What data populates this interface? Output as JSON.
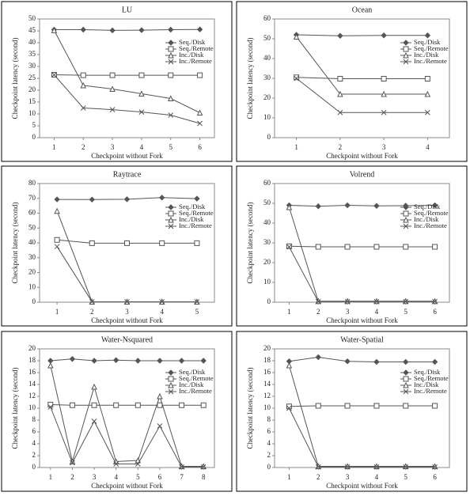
{
  "chart_data": [
    {
      "type": "line",
      "title": "LU",
      "x_label": "Checkpoint without Fork",
      "y_label": "Checkpoint latency (second)",
      "x": [
        1,
        2,
        3,
        4,
        5,
        6
      ],
      "xlim": [
        0.5,
        6.5
      ],
      "xticks": [
        1,
        2,
        3,
        4,
        5,
        6
      ],
      "ylim": [
        0,
        50
      ],
      "yticks": [
        0,
        5,
        10,
        15,
        20,
        25,
        30,
        35,
        40,
        45,
        50
      ],
      "legend": "right",
      "series": [
        {
          "name": "Seq./Disk",
          "color": "#555",
          "marker": "diamond",
          "values": [
            45.5,
            45.5,
            45.2,
            45.3,
            45.5,
            45.6
          ]
        },
        {
          "name": "Seq./Remote",
          "color": "#555",
          "marker": "square",
          "values": [
            26.5,
            26.3,
            26.3,
            26.3,
            26.3,
            26.3
          ]
        },
        {
          "name": "Inc./Disk",
          "color": "#555",
          "marker": "triangle",
          "values": [
            45.2,
            22,
            20.5,
            18.5,
            16.5,
            10.5
          ]
        },
        {
          "name": "Inc./Remote",
          "color": "#555",
          "marker": "x",
          "values": [
            26.5,
            12.5,
            11.8,
            10.8,
            9.5,
            6
          ]
        }
      ]
    },
    {
      "type": "line",
      "title": "Ocean",
      "x_label": "Checkpoint without Fork",
      "y_label": "Checkpoint latency (second)",
      "x": [
        1,
        2,
        3,
        4
      ],
      "xlim": [
        0.5,
        4.5
      ],
      "xticks": [
        1,
        2,
        3,
        4
      ],
      "ylim": [
        0,
        60
      ],
      "yticks": [
        0,
        10,
        20,
        30,
        40,
        50,
        60
      ],
      "legend": "right",
      "series": [
        {
          "name": "Seq./Disk",
          "color": "#555",
          "marker": "diamond",
          "values": [
            52,
            51.5,
            51.7,
            51.7
          ]
        },
        {
          "name": "Seq./Remote",
          "color": "#555",
          "marker": "square",
          "values": [
            30.5,
            29.8,
            29.8,
            29.8
          ]
        },
        {
          "name": "Inc./Disk",
          "color": "#555",
          "marker": "triangle",
          "values": [
            51,
            22,
            22,
            22
          ]
        },
        {
          "name": "Inc./Remote",
          "color": "#555",
          "marker": "x",
          "values": [
            30,
            12.7,
            12.7,
            12.7
          ]
        }
      ]
    },
    {
      "type": "line",
      "title": "Raytrace",
      "x_label": "Checkpoint without Fork",
      "y_label": "Checkpoint latency (second)",
      "x": [
        1,
        2,
        3,
        4,
        5
      ],
      "xlim": [
        0.5,
        5.5
      ],
      "xticks": [
        1,
        2,
        3,
        4,
        5
      ],
      "ylim": [
        0,
        80
      ],
      "yticks": [
        0,
        10,
        20,
        30,
        40,
        50,
        60,
        70,
        80
      ],
      "legend": "right",
      "series": [
        {
          "name": "Seq./Disk",
          "color": "#555",
          "marker": "diamond",
          "values": [
            69.3,
            69.2,
            69.4,
            70.5,
            69.8
          ]
        },
        {
          "name": "Seq./Remote",
          "color": "#555",
          "marker": "square",
          "values": [
            42,
            39.8,
            39.8,
            39.8,
            39.8
          ]
        },
        {
          "name": "Inc./Disk",
          "color": "#555",
          "marker": "triangle",
          "values": [
            61.5,
            0.3,
            0.3,
            0.3,
            0.3
          ]
        },
        {
          "name": "Inc./Remote",
          "color": "#555",
          "marker": "x",
          "values": [
            37.5,
            0.3,
            0.3,
            0.3,
            0.3
          ]
        }
      ]
    },
    {
      "type": "line",
      "title": "Volrend",
      "x_label": "Checkpoint without Fork",
      "y_label": "Checkpoint latency (second)",
      "x": [
        1,
        2,
        3,
        4,
        5,
        6
      ],
      "xlim": [
        0.5,
        6.5
      ],
      "xticks": [
        1,
        2,
        3,
        4,
        5,
        6
      ],
      "ylim": [
        0,
        60
      ],
      "yticks": [
        0,
        10,
        20,
        30,
        40,
        50,
        60
      ],
      "legend": "right",
      "series": [
        {
          "name": "Seq./Disk",
          "color": "#555",
          "marker": "diamond",
          "values": [
            49,
            48.5,
            49,
            48.7,
            48.8,
            49
          ]
        },
        {
          "name": "Seq./Remote",
          "color": "#555",
          "marker": "square",
          "values": [
            28.3,
            28,
            28,
            28,
            28,
            28
          ]
        },
        {
          "name": "Inc./Disk",
          "color": "#555",
          "marker": "triangle",
          "values": [
            48,
            0.5,
            0.5,
            0.5,
            0.5,
            0.5
          ]
        },
        {
          "name": "Inc./Remote",
          "color": "#555",
          "marker": "x",
          "values": [
            28,
            0.3,
            0.3,
            0.3,
            0.3,
            0.3
          ]
        }
      ]
    },
    {
      "type": "line",
      "title": "Water-Nsquared",
      "x_label": "Checkpoint without Fork",
      "y_label": "Checkpoint latency (second)",
      "x": [
        1,
        2,
        3,
        4,
        5,
        6,
        7,
        8
      ],
      "xlim": [
        0.5,
        8.5
      ],
      "xticks": [
        1,
        2,
        3,
        4,
        5,
        6,
        7,
        8
      ],
      "ylim": [
        0,
        20
      ],
      "yticks": [
        0,
        2,
        4,
        6,
        8,
        10,
        12,
        14,
        16,
        18,
        20
      ],
      "legend": "right",
      "series": [
        {
          "name": "Seq./Disk",
          "color": "#555",
          "marker": "diamond",
          "values": [
            18,
            18.3,
            18,
            18.1,
            18,
            18,
            18,
            18
          ]
        },
        {
          "name": "Seq./Remote",
          "color": "#555",
          "marker": "square",
          "values": [
            10.6,
            10.5,
            10.5,
            10.5,
            10.5,
            10.5,
            10.5,
            10.5
          ]
        },
        {
          "name": "Inc./Disk",
          "color": "#555",
          "marker": "triangle",
          "values": [
            17.2,
            1,
            13.6,
            1,
            1.2,
            12,
            0.2,
            0.2
          ]
        },
        {
          "name": "Inc./Remote",
          "color": "#555",
          "marker": "x",
          "values": [
            10.2,
            0.8,
            7.8,
            0.6,
            0.6,
            7,
            0.1,
            0.1
          ]
        }
      ]
    },
    {
      "type": "line",
      "title": "Water-Spatial",
      "x_label": "Checkpoint without Fork",
      "y_label": "Checkpoint latency (second)",
      "x": [
        1,
        2,
        3,
        4,
        5,
        6
      ],
      "xlim": [
        0.5,
        6.5
      ],
      "xticks": [
        1,
        2,
        3,
        4,
        5,
        6
      ],
      "ylim": [
        0,
        20
      ],
      "yticks": [
        0,
        2,
        4,
        6,
        8,
        10,
        12,
        14,
        16,
        18,
        20
      ],
      "legend": "right",
      "series": [
        {
          "name": "Seq./Disk",
          "color": "#555",
          "marker": "diamond",
          "values": [
            17.9,
            18.6,
            17.9,
            17.8,
            17.8,
            17.8
          ]
        },
        {
          "name": "Seq./Remote",
          "color": "#555",
          "marker": "square",
          "values": [
            10.3,
            10.4,
            10.4,
            10.4,
            10.4,
            10.4
          ]
        },
        {
          "name": "Inc./Disk",
          "color": "#555",
          "marker": "triangle",
          "values": [
            17.2,
            0.2,
            0.2,
            0.2,
            0.2,
            0.2
          ]
        },
        {
          "name": "Inc./Remote",
          "color": "#555",
          "marker": "x",
          "values": [
            10,
            0.1,
            0.1,
            0.1,
            0.1,
            0.1
          ]
        }
      ]
    }
  ]
}
